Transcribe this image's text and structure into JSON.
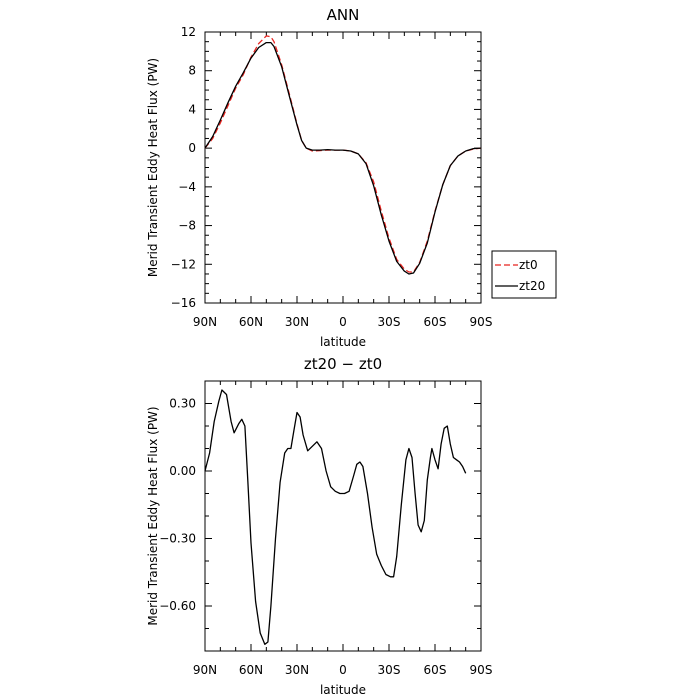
{
  "chart_data": [
    {
      "type": "line",
      "title": "ANN",
      "xlabel": "latitude",
      "ylabel": "Merid Transient Eddy Heat Flux (PW)",
      "xlim": [
        90,
        -90
      ],
      "ylim": [
        -16,
        12
      ],
      "x_ticks": [
        90,
        60,
        30,
        0,
        -30,
        -60,
        -90
      ],
      "x_tick_labels": [
        "90N",
        "60N",
        "30N",
        "0",
        "30S",
        "60S",
        "90S"
      ],
      "y_ticks": [
        -16,
        -12,
        -8,
        -4,
        0,
        4,
        8,
        12
      ],
      "y_tick_labels": [
        "−16",
        "−12",
        "−8",
        "−4",
        "0",
        "4",
        "8",
        "12"
      ],
      "legend_position": "right",
      "series": [
        {
          "name": "zt0",
          "color": "#e8231f",
          "dash": "dashed",
          "points": [
            [
              90,
              0
            ],
            [
              85,
              1.0
            ],
            [
              80,
              2.6
            ],
            [
              75,
              4.4
            ],
            [
              70,
              6.2
            ],
            [
              65,
              7.6
            ],
            [
              60,
              9.4
            ],
            [
              55,
              10.8
            ],
            [
              50,
              11.6
            ],
            [
              47,
              11.5
            ],
            [
              45,
              11.0
            ],
            [
              40,
              8.6
            ],
            [
              35,
              5.6
            ],
            [
              30,
              2.5
            ],
            [
              27,
              0.8
            ],
            [
              24,
              0.0
            ],
            [
              20,
              -0.3
            ],
            [
              15,
              -0.25
            ],
            [
              10,
              -0.2
            ],
            [
              5,
              -0.2
            ],
            [
              0,
              -0.2
            ],
            [
              -5,
              -0.3
            ],
            [
              -10,
              -0.6
            ],
            [
              -15,
              -1.5
            ],
            [
              -20,
              -3.5
            ],
            [
              -25,
              -6.5
            ],
            [
              -30,
              -9.3
            ],
            [
              -35,
              -11.5
            ],
            [
              -40,
              -12.5
            ],
            [
              -43,
              -12.8
            ],
            [
              -46,
              -12.8
            ],
            [
              -50,
              -11.8
            ],
            [
              -55,
              -9.6
            ],
            [
              -60,
              -6.5
            ],
            [
              -65,
              -3.8
            ],
            [
              -70,
              -1.8
            ],
            [
              -75,
              -0.8
            ],
            [
              -80,
              -0.3
            ],
            [
              -85,
              -0.1
            ],
            [
              -90,
              0
            ]
          ]
        },
        {
          "name": "zt20",
          "color": "#000000",
          "dash": "solid",
          "points": [
            [
              90,
              0
            ],
            [
              85,
              1.2
            ],
            [
              80,
              2.9
            ],
            [
              75,
              4.7
            ],
            [
              70,
              6.4
            ],
            [
              65,
              7.8
            ],
            [
              60,
              9.3
            ],
            [
              55,
              10.4
            ],
            [
              50,
              10.9
            ],
            [
              47,
              10.9
            ],
            [
              45,
              10.5
            ],
            [
              40,
              8.4
            ],
            [
              35,
              5.4
            ],
            [
              30,
              2.4
            ],
            [
              27,
              0.8
            ],
            [
              24,
              0.0
            ],
            [
              20,
              -0.2
            ],
            [
              15,
              -0.2
            ],
            [
              10,
              -0.15
            ],
            [
              5,
              -0.2
            ],
            [
              0,
              -0.2
            ],
            [
              -5,
              -0.3
            ],
            [
              -10,
              -0.6
            ],
            [
              -15,
              -1.6
            ],
            [
              -20,
              -3.9
            ],
            [
              -25,
              -6.9
            ],
            [
              -30,
              -9.6
            ],
            [
              -35,
              -11.7
            ],
            [
              -40,
              -12.7
            ],
            [
              -43,
              -13.0
            ],
            [
              -46,
              -12.9
            ],
            [
              -50,
              -11.9
            ],
            [
              -55,
              -9.8
            ],
            [
              -60,
              -6.6
            ],
            [
              -65,
              -3.8
            ],
            [
              -70,
              -1.8
            ],
            [
              -75,
              -0.8
            ],
            [
              -80,
              -0.3
            ],
            [
              -85,
              -0.05
            ],
            [
              -90,
              0
            ]
          ]
        }
      ]
    },
    {
      "type": "line",
      "title": "zt20 − zt0",
      "xlabel": "latitude",
      "ylabel": "Merid Transient Eddy Heat Flux (PW)",
      "xlim": [
        90,
        -90
      ],
      "ylim": [
        -0.8,
        0.4
      ],
      "x_ticks": [
        90,
        60,
        30,
        0,
        -30,
        -60,
        -90
      ],
      "x_tick_labels": [
        "90N",
        "60N",
        "30N",
        "0",
        "30S",
        "60S",
        "90S"
      ],
      "y_ticks": [
        -0.6,
        -0.3,
        0.0,
        0.3
      ],
      "y_tick_labels": [
        "−0.60",
        "−0.30",
        "0.00",
        "0.30"
      ],
      "series": [
        {
          "name": "",
          "color": "#000000",
          "dash": "solid",
          "points": [
            [
              90,
              0.0
            ],
            [
              87,
              0.08
            ],
            [
              84,
              0.22
            ],
            [
              81,
              0.31
            ],
            [
              79,
              0.36
            ],
            [
              76,
              0.34
            ],
            [
              73,
              0.22
            ],
            [
              71,
              0.17
            ],
            [
              68,
              0.21
            ],
            [
              66,
              0.23
            ],
            [
              64,
              0.2
            ],
            [
              62,
              -0.05
            ],
            [
              60,
              -0.32
            ],
            [
              57,
              -0.58
            ],
            [
              54,
              -0.72
            ],
            [
              51,
              -0.77
            ],
            [
              49,
              -0.76
            ],
            [
              47,
              -0.6
            ],
            [
              44,
              -0.3
            ],
            [
              41,
              -0.05
            ],
            [
              38,
              0.08
            ],
            [
              36,
              0.1
            ],
            [
              34,
              0.1
            ],
            [
              32,
              0.18
            ],
            [
              30,
              0.26
            ],
            [
              28,
              0.24
            ],
            [
              26,
              0.16
            ],
            [
              23,
              0.09
            ],
            [
              20,
              0.11
            ],
            [
              17,
              0.13
            ],
            [
              14,
              0.1
            ],
            [
              11,
              0.0
            ],
            [
              8,
              -0.07
            ],
            [
              5,
              -0.09
            ],
            [
              2,
              -0.1
            ],
            [
              -1,
              -0.1
            ],
            [
              -4,
              -0.09
            ],
            [
              -7,
              -0.02
            ],
            [
              -9,
              0.03
            ],
            [
              -11,
              0.04
            ],
            [
              -13,
              0.02
            ],
            [
              -16,
              -0.1
            ],
            [
              -19,
              -0.25
            ],
            [
              -22,
              -0.37
            ],
            [
              -25,
              -0.42
            ],
            [
              -28,
              -0.46
            ],
            [
              -31,
              -0.47
            ],
            [
              -33,
              -0.47
            ],
            [
              -35,
              -0.38
            ],
            [
              -38,
              -0.15
            ],
            [
              -41,
              0.05
            ],
            [
              -43,
              0.1
            ],
            [
              -45,
              0.06
            ],
            [
              -47,
              -0.1
            ],
            [
              -49,
              -0.24
            ],
            [
              -51,
              -0.27
            ],
            [
              -53,
              -0.22
            ],
            [
              -55,
              -0.04
            ],
            [
              -57,
              0.06
            ],
            [
              -58,
              0.1
            ],
            [
              -60,
              0.05
            ],
            [
              -62,
              0.01
            ],
            [
              -64,
              0.12
            ],
            [
              -66,
              0.19
            ],
            [
              -68,
              0.2
            ],
            [
              -70,
              0.12
            ],
            [
              -72,
              0.06
            ],
            [
              -74,
              0.05
            ],
            [
              -76,
              0.04
            ],
            [
              -78,
              0.02
            ],
            [
              -80,
              -0.01
            ]
          ]
        }
      ]
    }
  ]
}
